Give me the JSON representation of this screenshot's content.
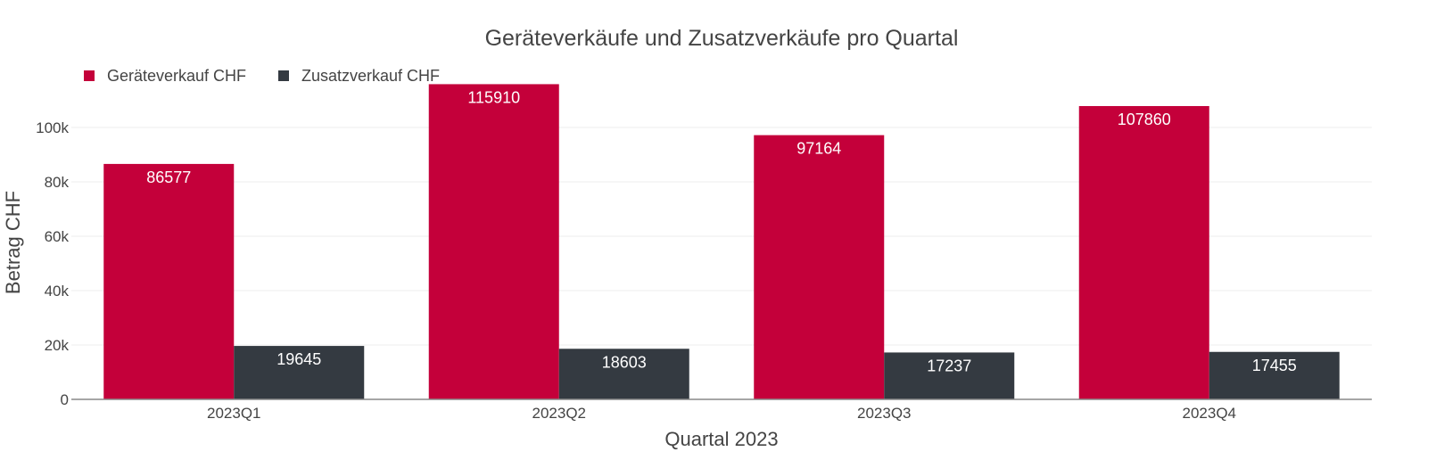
{
  "chart_data": {
    "type": "bar",
    "title": "Geräteverkäufe und Zusatzverkäufe pro Quartal",
    "xlabel": "Quartal 2023",
    "ylabel": "Betrag CHF",
    "categories": [
      "2023Q1",
      "2023Q2",
      "2023Q3",
      "2023Q4"
    ],
    "series": [
      {
        "name": "Geräteverkauf CHF",
        "color": "#c4003a",
        "values": [
          86577,
          115910,
          97164,
          107860
        ]
      },
      {
        "name": "Zusatzverkauf CHF",
        "color": "#343a41",
        "values": [
          19645,
          18603,
          17237,
          17455
        ]
      }
    ],
    "ylim": [
      0,
      119000
    ],
    "yticks": [
      0,
      20000,
      40000,
      60000,
      80000,
      100000
    ],
    "ytick_labels": [
      "0",
      "20k",
      "40k",
      "60k",
      "80k",
      "100k"
    ],
    "grid": true,
    "legend_position": "top-left",
    "data_labels": true
  }
}
